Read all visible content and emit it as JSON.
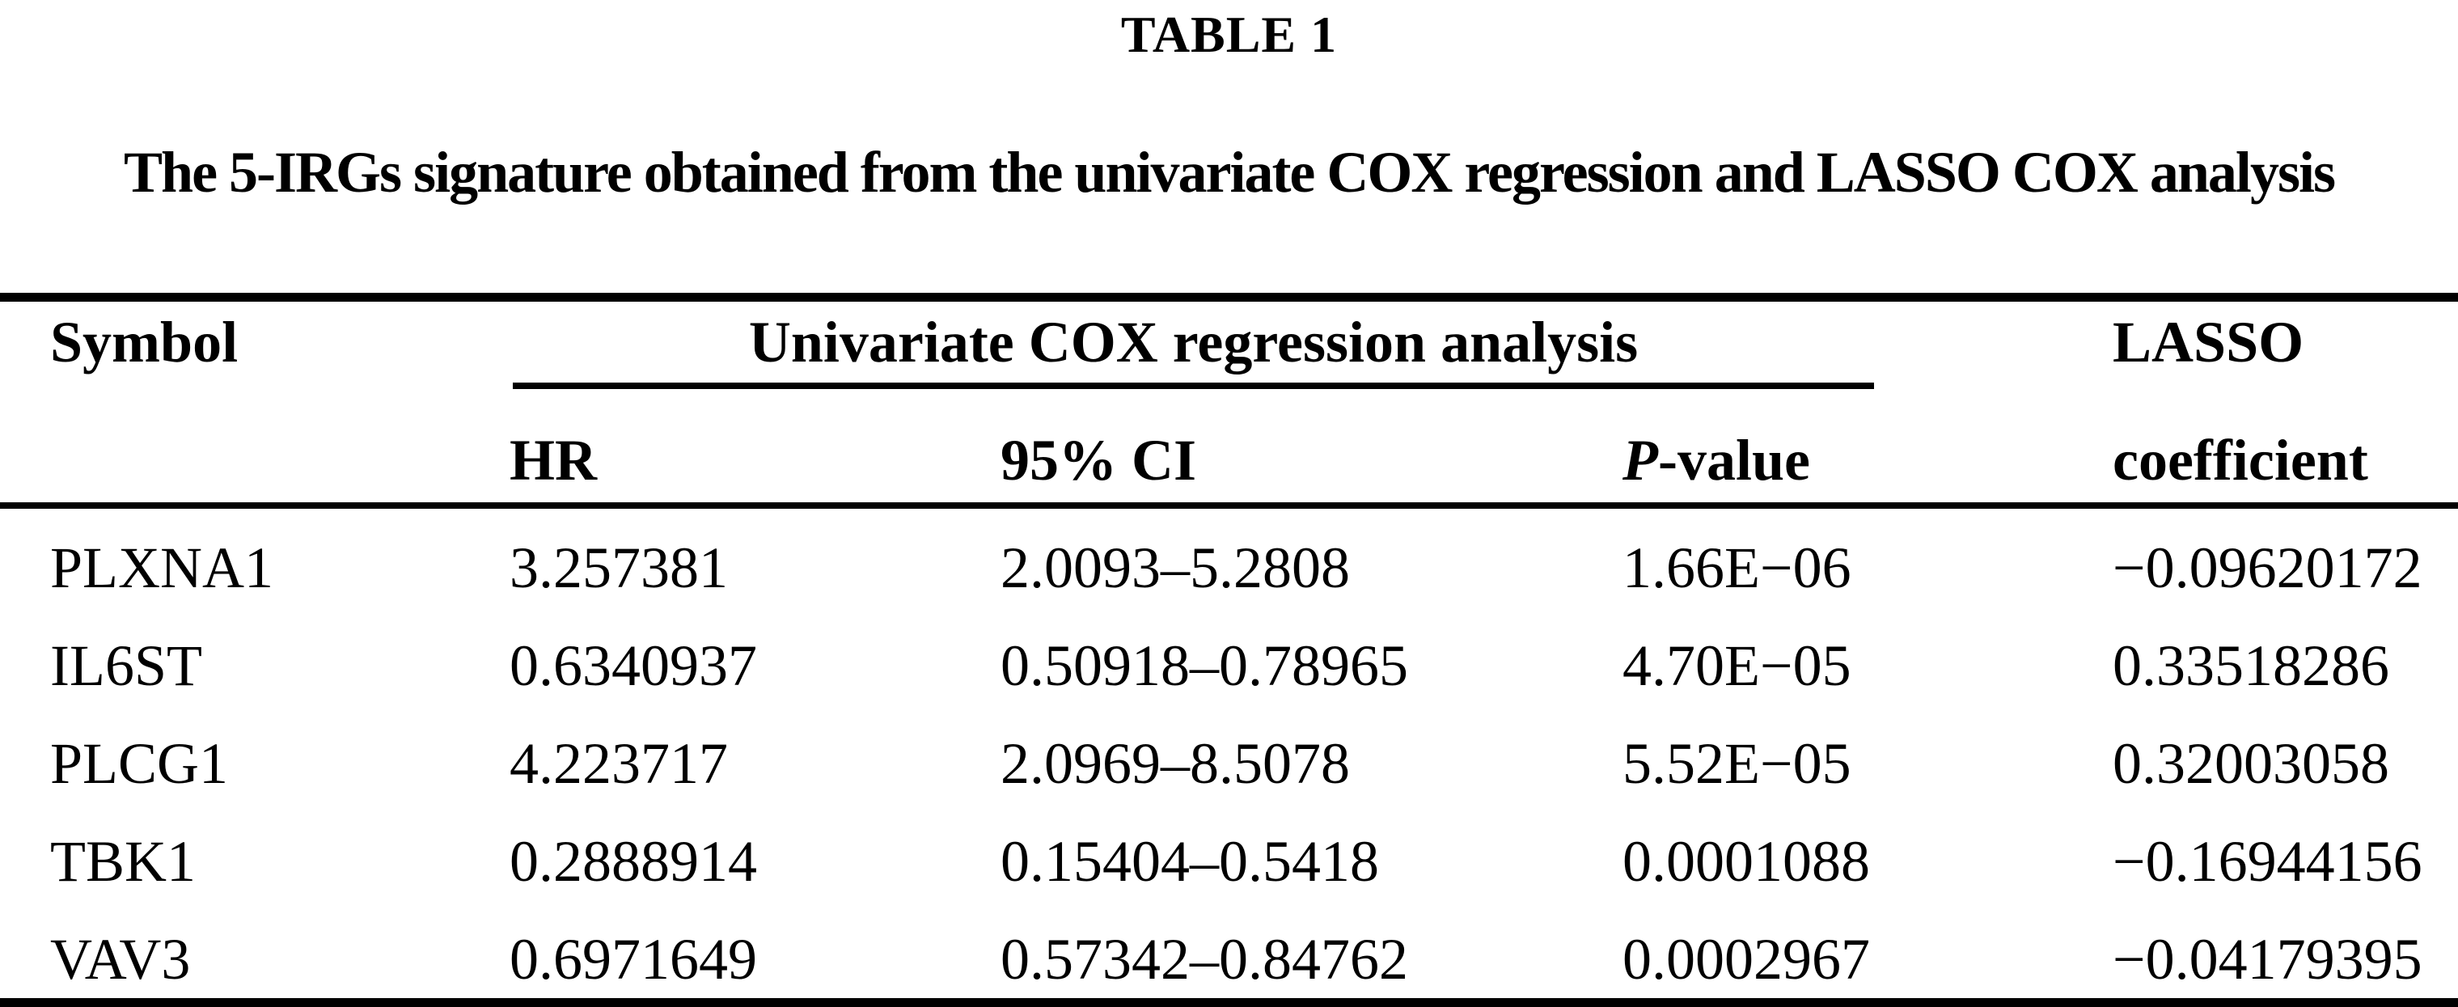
{
  "title": "TABLE 1",
  "subtitle": "The 5-IRGs signature obtained from the univariate COX regression and LASSO COX analysis",
  "table": {
    "col_headers": {
      "symbol": "Symbol",
      "group": "Univariate COX regression analysis",
      "hr": "HR",
      "ci": "95% CI",
      "p_italic": "P",
      "p_rest": "-value",
      "lasso_line1": "LASSO",
      "lasso_line2": "coefficient"
    },
    "rows": [
      {
        "symbol": "PLXNA1",
        "hr": "3.257381",
        "ci": "2.0093–5.2808",
        "p": "1.66E−06",
        "lasso": "−0.09620172"
      },
      {
        "symbol": "IL6ST",
        "hr": "0.6340937",
        "ci": "0.50918–0.78965",
        "p": "4.70E−05",
        "lasso": "0.33518286"
      },
      {
        "symbol": "PLCG1",
        "hr": "4.223717",
        "ci": "2.0969–8.5078",
        "p": "5.52E−05",
        "lasso": "0.32003058"
      },
      {
        "symbol": "TBK1",
        "hr": "0.2888914",
        "ci": "0.15404–0.5418",
        "p": "0.0001088",
        "lasso": "−0.16944156"
      },
      {
        "symbol": "VAV3",
        "hr": "0.6971649",
        "ci": "0.57342–0.84762",
        "p": "0.0002967",
        "lasso": "−0.04179395"
      }
    ]
  },
  "colors": {
    "text": "#000000",
    "background": "#ffffff",
    "rule": "#000000"
  }
}
